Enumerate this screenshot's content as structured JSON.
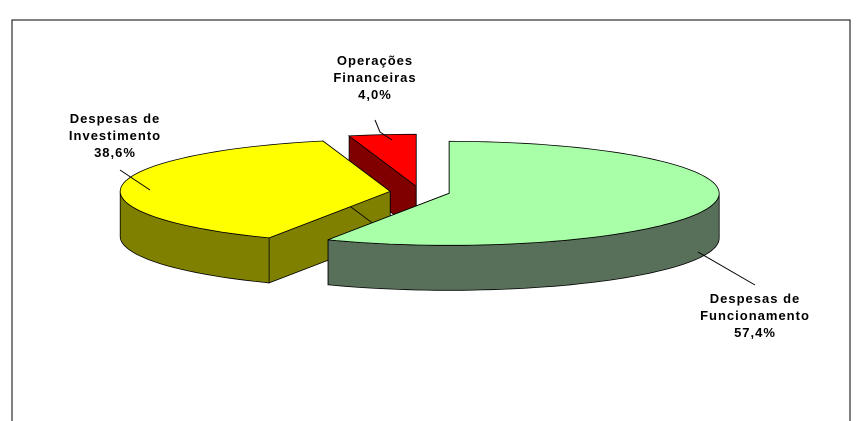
{
  "chart_data": {
    "type": "pie3d",
    "categories": [
      "Despesas de Funcionamento",
      "Despesas de Investimento",
      "Operações Financeiras"
    ],
    "values": [
      57.4,
      38.6,
      4.0
    ],
    "value_labels": [
      "57,4%",
      "38,6%",
      "4,0%"
    ],
    "colors": [
      "#a8ffa8",
      "#ffff00",
      "#ff0000"
    ],
    "side_colors": [
      "#58705a",
      "#808000",
      "#800000"
    ]
  }
}
